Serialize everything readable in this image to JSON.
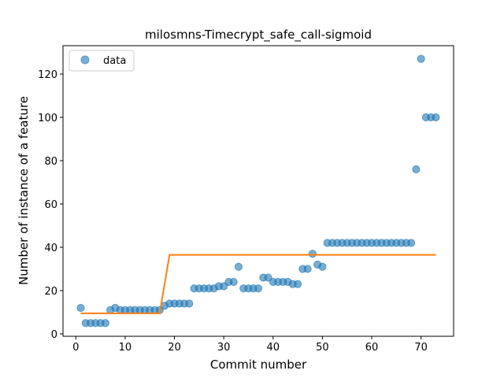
{
  "chart_data": {
    "type": "scatter",
    "title": "milosmns-Timecrypt_safe_call-sigmoid",
    "xlabel": "Commit number",
    "ylabel": "Number of instance of a feature",
    "xlim": [
      -2.6,
      76.6
    ],
    "ylim": [
      -1.1,
      133.1
    ],
    "xticks": [
      0,
      10,
      20,
      30,
      40,
      50,
      60,
      70
    ],
    "yticks": [
      0,
      20,
      40,
      60,
      80,
      100,
      120
    ],
    "grid": false,
    "legend": {
      "placement": "top-left",
      "entries": [
        "data"
      ]
    },
    "colors": {
      "data": "#1f77b4",
      "fit": "#ff7f0e"
    },
    "series": [
      {
        "name": "data",
        "kind": "scatter",
        "x": [
          1,
          2,
          3,
          4,
          5,
          6,
          7,
          8,
          9,
          10,
          11,
          12,
          13,
          14,
          15,
          16,
          17,
          18,
          19,
          20,
          21,
          22,
          23,
          24,
          25,
          26,
          27,
          28,
          29,
          30,
          31,
          32,
          33,
          34,
          35,
          36,
          37,
          38,
          39,
          40,
          41,
          42,
          43,
          44,
          45,
          46,
          47,
          48,
          49,
          50,
          51,
          52,
          53,
          54,
          55,
          56,
          57,
          58,
          59,
          60,
          61,
          62,
          63,
          64,
          65,
          66,
          67,
          68,
          69,
          70,
          71,
          72,
          73
        ],
        "y": [
          12,
          5,
          5,
          5,
          5,
          5,
          11,
          12,
          11,
          11,
          11,
          11,
          11,
          11,
          11,
          11,
          11,
          13,
          14,
          14,
          14,
          14,
          14,
          21,
          21,
          21,
          21,
          21,
          22,
          22,
          24,
          24,
          31,
          21,
          21,
          21,
          21,
          26,
          26,
          24,
          24,
          24,
          24,
          23,
          23,
          30,
          30,
          37,
          32,
          31,
          42,
          42,
          42,
          42,
          42,
          42,
          42,
          42,
          42,
          42,
          42,
          42,
          42,
          42,
          42,
          42,
          42,
          42,
          76,
          127,
          100,
          100,
          100
        ]
      },
      {
        "name": "",
        "kind": "line",
        "x": [
          1,
          17,
          19,
          73
        ],
        "y": [
          9.5,
          9.5,
          36.5,
          36.5
        ]
      }
    ]
  }
}
